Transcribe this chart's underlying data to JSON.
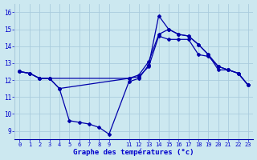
{
  "bg_color": "#cce8f0",
  "grid_color": "#aaccdd",
  "line_color": "#0000aa",
  "marker": "D",
  "markersize": 2.0,
  "linewidth": 0.9,
  "xlabel": "Graphe des températures (°c)",
  "xlabel_color": "#0000cc",
  "tick_color": "#0000cc",
  "xlim": [
    -0.5,
    23.5
  ],
  "ylim": [
    8.5,
    16.5
  ],
  "yticks": [
    9,
    10,
    11,
    12,
    13,
    14,
    15,
    16
  ],
  "xtick_positions": [
    0,
    1,
    2,
    3,
    4,
    5,
    6,
    7,
    8,
    9,
    11,
    12,
    13,
    14,
    15,
    16,
    17,
    18,
    19,
    20,
    21,
    22,
    23
  ],
  "xtick_labels": [
    "0",
    "1",
    "2",
    "3",
    "4",
    "5",
    "6",
    "7",
    "8",
    "9",
    "11",
    "12",
    "13",
    "14",
    "15",
    "16",
    "17",
    "18",
    "19",
    "20",
    "21",
    "22",
    "23"
  ],
  "line1_x": [
    0,
    1,
    2,
    3,
    4,
    5,
    6,
    7,
    8,
    9,
    11,
    12,
    13,
    14,
    15,
    16,
    17,
    18,
    19,
    20,
    21,
    22,
    23
  ],
  "line1_y": [
    12.5,
    12.4,
    12.1,
    12.1,
    11.5,
    9.6,
    9.5,
    9.4,
    9.2,
    8.8,
    11.9,
    12.1,
    12.9,
    15.8,
    15.0,
    14.7,
    14.6,
    14.1,
    13.5,
    12.6,
    12.6,
    12.4,
    11.7
  ],
  "line2_x": [
    0,
    1,
    2,
    3,
    11,
    12,
    13,
    14,
    15,
    16,
    17,
    18,
    19,
    20,
    21,
    22,
    23
  ],
  "line2_y": [
    12.5,
    12.4,
    12.1,
    12.1,
    12.1,
    12.2,
    12.8,
    14.6,
    14.4,
    14.4,
    14.4,
    13.5,
    13.4,
    12.8,
    12.6,
    12.4,
    11.7
  ],
  "line3_x": [
    0,
    1,
    2,
    3,
    4,
    11,
    12,
    13,
    14,
    15,
    16,
    17,
    18,
    19,
    20,
    21,
    22,
    23
  ],
  "line3_y": [
    12.5,
    12.4,
    12.1,
    12.1,
    11.5,
    12.1,
    12.3,
    13.1,
    14.7,
    15.0,
    14.7,
    14.6,
    14.1,
    13.5,
    12.8,
    12.6,
    12.4,
    11.7
  ]
}
